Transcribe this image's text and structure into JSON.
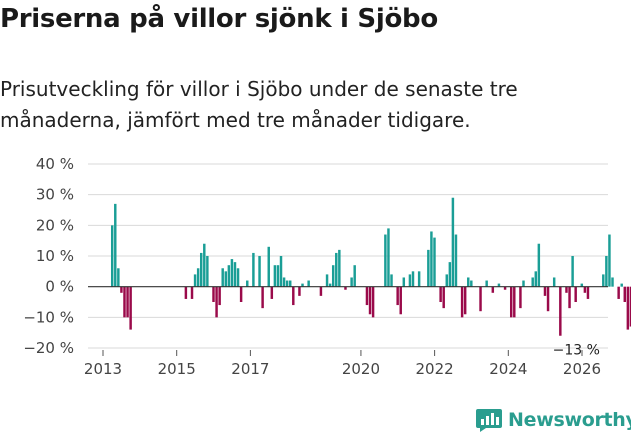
{
  "header": {
    "title": "Priserna på villor sjönk i Sjöbo",
    "subtitle": "Prisutveckling för villor i Sjöbo under de senaste tre månaderna, jämfört med tre månader tidigare."
  },
  "brand": {
    "name": "Newsworthy",
    "color": "#2a9d8f"
  },
  "colors": {
    "positive": "#1a9e96",
    "negative": "#9a0a4a",
    "grid": "#d9d9d9",
    "zero": "#333333"
  },
  "chart_data": {
    "type": "bar",
    "title": "Priserna på villor sjönk i Sjöbo",
    "ylabel": "",
    "xlabel": "",
    "ylim": [
      -20,
      40
    ],
    "yticks": [
      40,
      30,
      20,
      10,
      0,
      -10,
      -20
    ],
    "ytick_labels": [
      "40 %",
      "30 %",
      "20 %",
      "10 %",
      "0 %",
      "−10 %",
      "−20 %"
    ],
    "xticks": [
      2013,
      2015,
      2017,
      2020,
      2022,
      2024,
      2026
    ],
    "annotation": {
      "label": "−13 %",
      "year": 2025.9,
      "value": -13
    },
    "series": [
      {
        "name": "Prisutveckling",
        "start_year": 2013.25,
        "step_years": 0.0833,
        "values": [
          20,
          27,
          6,
          -2,
          -10,
          -10,
          -14,
          0,
          0,
          0,
          0,
          0,
          0,
          0,
          0,
          0,
          0,
          0,
          0,
          0,
          0,
          0,
          0,
          0,
          -4,
          0,
          -4,
          4,
          6,
          11,
          14,
          10,
          0,
          -5,
          -10,
          -6,
          6,
          5,
          7,
          9,
          8,
          6,
          -5,
          0,
          2,
          0,
          11,
          0,
          10,
          -7,
          0,
          13,
          -4,
          7,
          7,
          10,
          3,
          2,
          2,
          -6,
          0,
          -3,
          1,
          0,
          2,
          0,
          0,
          0,
          -3,
          0,
          4,
          1,
          7,
          11,
          12,
          0,
          -1,
          0,
          3,
          7,
          0,
          0,
          0,
          -6,
          -9,
          -10,
          0,
          0,
          0,
          17,
          19,
          4,
          0,
          -6,
          -9,
          3,
          0,
          4,
          5,
          0,
          5,
          0,
          0,
          12,
          18,
          16,
          0,
          -5,
          -7,
          4,
          8,
          29,
          17,
          0,
          -10,
          -9,
          3,
          2,
          0,
          0,
          -8,
          0,
          2,
          0,
          -2,
          0,
          1,
          0,
          -1,
          0,
          -10,
          -10,
          0,
          -7,
          2,
          0,
          0,
          3,
          5,
          14,
          0,
          -3,
          -8,
          0,
          3,
          0,
          -16,
          0,
          -2,
          -7,
          10,
          -5,
          0,
          1,
          -2,
          -4,
          0,
          0,
          0,
          0,
          4,
          10,
          17,
          3,
          0,
          -4,
          1,
          -5,
          -14,
          -13
        ]
      }
    ]
  }
}
